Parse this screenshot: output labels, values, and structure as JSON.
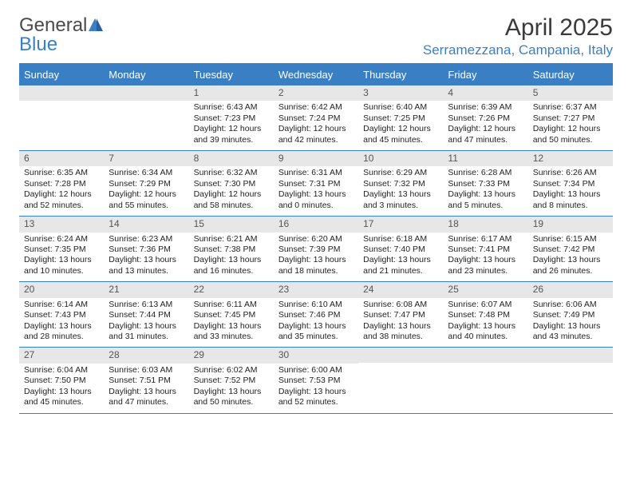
{
  "logo": {
    "text_gray": "General",
    "text_blue": "Blue"
  },
  "title": "April 2025",
  "location": "Serramezzana, Campania, Italy",
  "colors": {
    "accent": "#3a7fc4",
    "header_row_bg": "#3a7fc4",
    "header_row_text": "#ffffff",
    "daynum_bg": "#e7e7e7",
    "daynum_text": "#555555",
    "body_text": "#222222",
    "border": "#3a7fc4"
  },
  "day_names": [
    "Sunday",
    "Monday",
    "Tuesday",
    "Wednesday",
    "Thursday",
    "Friday",
    "Saturday"
  ],
  "weeks": [
    [
      {
        "n": "",
        "sr": "",
        "ss": "",
        "dl": ""
      },
      {
        "n": "",
        "sr": "",
        "ss": "",
        "dl": ""
      },
      {
        "n": "1",
        "sr": "Sunrise: 6:43 AM",
        "ss": "Sunset: 7:23 PM",
        "dl": "Daylight: 12 hours and 39 minutes."
      },
      {
        "n": "2",
        "sr": "Sunrise: 6:42 AM",
        "ss": "Sunset: 7:24 PM",
        "dl": "Daylight: 12 hours and 42 minutes."
      },
      {
        "n": "3",
        "sr": "Sunrise: 6:40 AM",
        "ss": "Sunset: 7:25 PM",
        "dl": "Daylight: 12 hours and 45 minutes."
      },
      {
        "n": "4",
        "sr": "Sunrise: 6:39 AM",
        "ss": "Sunset: 7:26 PM",
        "dl": "Daylight: 12 hours and 47 minutes."
      },
      {
        "n": "5",
        "sr": "Sunrise: 6:37 AM",
        "ss": "Sunset: 7:27 PM",
        "dl": "Daylight: 12 hours and 50 minutes."
      }
    ],
    [
      {
        "n": "6",
        "sr": "Sunrise: 6:35 AM",
        "ss": "Sunset: 7:28 PM",
        "dl": "Daylight: 12 hours and 52 minutes."
      },
      {
        "n": "7",
        "sr": "Sunrise: 6:34 AM",
        "ss": "Sunset: 7:29 PM",
        "dl": "Daylight: 12 hours and 55 minutes."
      },
      {
        "n": "8",
        "sr": "Sunrise: 6:32 AM",
        "ss": "Sunset: 7:30 PM",
        "dl": "Daylight: 12 hours and 58 minutes."
      },
      {
        "n": "9",
        "sr": "Sunrise: 6:31 AM",
        "ss": "Sunset: 7:31 PM",
        "dl": "Daylight: 13 hours and 0 minutes."
      },
      {
        "n": "10",
        "sr": "Sunrise: 6:29 AM",
        "ss": "Sunset: 7:32 PM",
        "dl": "Daylight: 13 hours and 3 minutes."
      },
      {
        "n": "11",
        "sr": "Sunrise: 6:28 AM",
        "ss": "Sunset: 7:33 PM",
        "dl": "Daylight: 13 hours and 5 minutes."
      },
      {
        "n": "12",
        "sr": "Sunrise: 6:26 AM",
        "ss": "Sunset: 7:34 PM",
        "dl": "Daylight: 13 hours and 8 minutes."
      }
    ],
    [
      {
        "n": "13",
        "sr": "Sunrise: 6:24 AM",
        "ss": "Sunset: 7:35 PM",
        "dl": "Daylight: 13 hours and 10 minutes."
      },
      {
        "n": "14",
        "sr": "Sunrise: 6:23 AM",
        "ss": "Sunset: 7:36 PM",
        "dl": "Daylight: 13 hours and 13 minutes."
      },
      {
        "n": "15",
        "sr": "Sunrise: 6:21 AM",
        "ss": "Sunset: 7:38 PM",
        "dl": "Daylight: 13 hours and 16 minutes."
      },
      {
        "n": "16",
        "sr": "Sunrise: 6:20 AM",
        "ss": "Sunset: 7:39 PM",
        "dl": "Daylight: 13 hours and 18 minutes."
      },
      {
        "n": "17",
        "sr": "Sunrise: 6:18 AM",
        "ss": "Sunset: 7:40 PM",
        "dl": "Daylight: 13 hours and 21 minutes."
      },
      {
        "n": "18",
        "sr": "Sunrise: 6:17 AM",
        "ss": "Sunset: 7:41 PM",
        "dl": "Daylight: 13 hours and 23 minutes."
      },
      {
        "n": "19",
        "sr": "Sunrise: 6:15 AM",
        "ss": "Sunset: 7:42 PM",
        "dl": "Daylight: 13 hours and 26 minutes."
      }
    ],
    [
      {
        "n": "20",
        "sr": "Sunrise: 6:14 AM",
        "ss": "Sunset: 7:43 PM",
        "dl": "Daylight: 13 hours and 28 minutes."
      },
      {
        "n": "21",
        "sr": "Sunrise: 6:13 AM",
        "ss": "Sunset: 7:44 PM",
        "dl": "Daylight: 13 hours and 31 minutes."
      },
      {
        "n": "22",
        "sr": "Sunrise: 6:11 AM",
        "ss": "Sunset: 7:45 PM",
        "dl": "Daylight: 13 hours and 33 minutes."
      },
      {
        "n": "23",
        "sr": "Sunrise: 6:10 AM",
        "ss": "Sunset: 7:46 PM",
        "dl": "Daylight: 13 hours and 35 minutes."
      },
      {
        "n": "24",
        "sr": "Sunrise: 6:08 AM",
        "ss": "Sunset: 7:47 PM",
        "dl": "Daylight: 13 hours and 38 minutes."
      },
      {
        "n": "25",
        "sr": "Sunrise: 6:07 AM",
        "ss": "Sunset: 7:48 PM",
        "dl": "Daylight: 13 hours and 40 minutes."
      },
      {
        "n": "26",
        "sr": "Sunrise: 6:06 AM",
        "ss": "Sunset: 7:49 PM",
        "dl": "Daylight: 13 hours and 43 minutes."
      }
    ],
    [
      {
        "n": "27",
        "sr": "Sunrise: 6:04 AM",
        "ss": "Sunset: 7:50 PM",
        "dl": "Daylight: 13 hours and 45 minutes."
      },
      {
        "n": "28",
        "sr": "Sunrise: 6:03 AM",
        "ss": "Sunset: 7:51 PM",
        "dl": "Daylight: 13 hours and 47 minutes."
      },
      {
        "n": "29",
        "sr": "Sunrise: 6:02 AM",
        "ss": "Sunset: 7:52 PM",
        "dl": "Daylight: 13 hours and 50 minutes."
      },
      {
        "n": "30",
        "sr": "Sunrise: 6:00 AM",
        "ss": "Sunset: 7:53 PM",
        "dl": "Daylight: 13 hours and 52 minutes."
      },
      {
        "n": "",
        "sr": "",
        "ss": "",
        "dl": ""
      },
      {
        "n": "",
        "sr": "",
        "ss": "",
        "dl": ""
      },
      {
        "n": "",
        "sr": "",
        "ss": "",
        "dl": ""
      }
    ]
  ]
}
